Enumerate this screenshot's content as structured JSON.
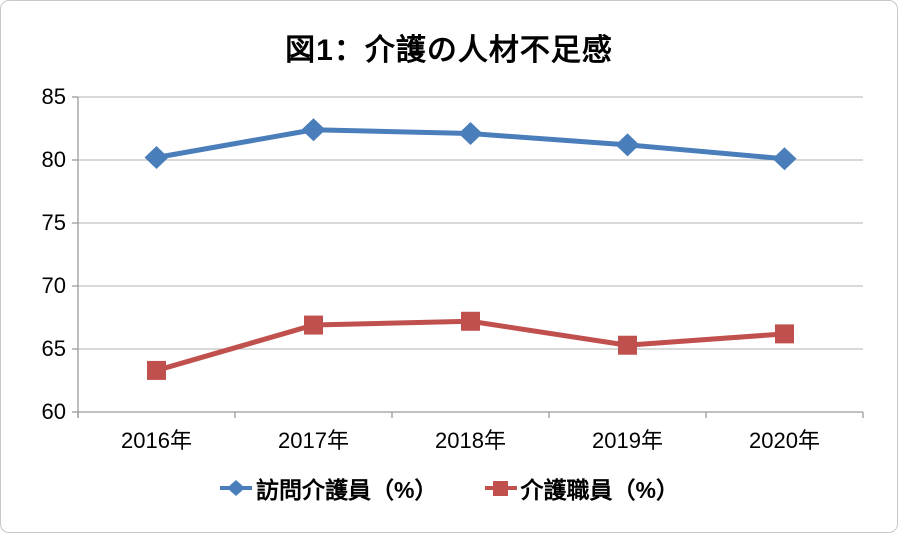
{
  "chart_data": {
    "type": "line",
    "title": "図1：介護の人材不足感",
    "categories": [
      "2016年",
      "2017年",
      "2018年",
      "2019年",
      "2020年"
    ],
    "series": [
      {
        "name": "訪問介護員（%）",
        "values": [
          80.2,
          82.4,
          82.1,
          81.2,
          80.1
        ],
        "color": "#4a7ebb",
        "marker": "diamond"
      },
      {
        "name": "介護職員（%）",
        "values": [
          63.3,
          66.9,
          67.2,
          65.3,
          66.2
        ],
        "color": "#c0504d",
        "marker": "square"
      }
    ],
    "ylim": [
      60,
      85
    ],
    "yticks": [
      60,
      65,
      70,
      75,
      80,
      85
    ],
    "grid": true,
    "legend_position": "bottom",
    "xlabel": "",
    "ylabel": ""
  },
  "colors": {
    "background": "#ffffff",
    "frame_border": "#c9c9c9",
    "gridline": "#b3b3b3",
    "axis": "#9a9a9a",
    "text": "#000000"
  }
}
